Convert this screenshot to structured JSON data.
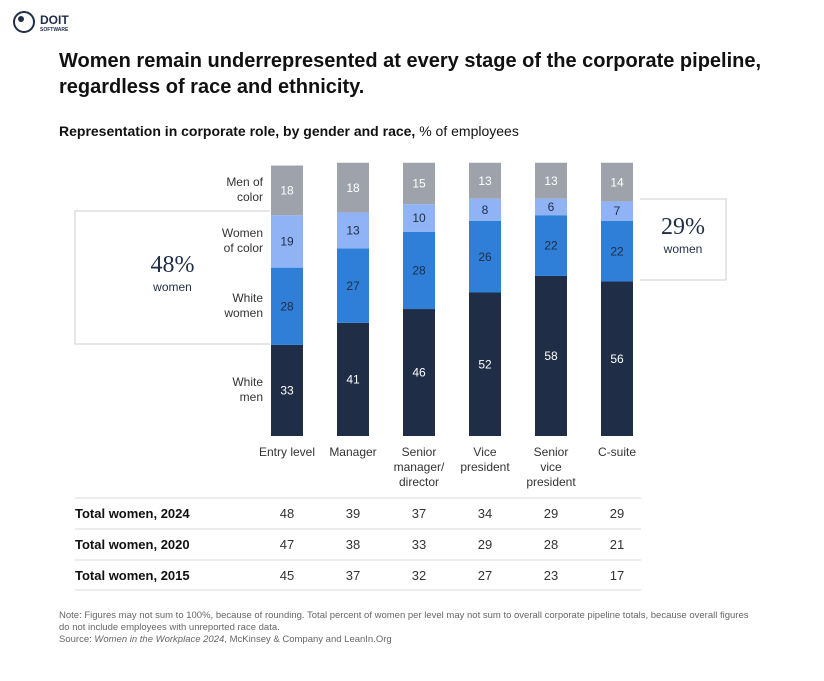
{
  "logo": {
    "name": "DOIT",
    "sub": "SOFTWARE"
  },
  "chart_data": {
    "type": "stacked_bar",
    "title": "Women remain underrepresented at every stage of the corporate pipeline, regardless of race and ethnicity.",
    "subtitle": "Representation in corporate role, by gender and race,",
    "subtitle_unit": "% of employees",
    "categories": [
      "Entry level",
      "Manager",
      "Senior\nmanager/\ndirector",
      "Vice\npresident",
      "Senior\nvice\npresident",
      "C-suite"
    ],
    "series": [
      {
        "name": "White\nmen",
        "color": "#1f2e46",
        "label_color": "#ffffff",
        "values": [
          33,
          41,
          46,
          52,
          58,
          56
        ]
      },
      {
        "name": "White\nwomen",
        "color": "#2f7ed8",
        "label_color": "#1f2e46",
        "values": [
          28,
          27,
          28,
          26,
          22,
          22
        ]
      },
      {
        "name": "Women\nof color",
        "color": "#8fb3f5",
        "label_color": "#1f2e46",
        "values": [
          19,
          13,
          10,
          8,
          6,
          7
        ]
      },
      {
        "name": "Men of\ncolor",
        "color": "#9ea3ab",
        "label_color": "#ffffff",
        "values": [
          18,
          18,
          15,
          13,
          13,
          14
        ]
      }
    ],
    "ylim": [
      0,
      100
    ],
    "annotations": [
      {
        "value": "48%",
        "label": "women"
      },
      {
        "value": "29%",
        "label": "women"
      }
    ]
  },
  "table": {
    "rows": [
      {
        "label": "Total women, 2024",
        "values": [
          "48",
          "39",
          "37",
          "34",
          "29",
          "29"
        ]
      },
      {
        "label": "Total women, 2020",
        "values": [
          "47",
          "38",
          "33",
          "29",
          "28",
          "21"
        ]
      },
      {
        "label": "Total women, 2015",
        "values": [
          "45",
          "37",
          "32",
          "27",
          "23",
          "17"
        ]
      }
    ]
  },
  "footer": {
    "note": "Note: Figures may not sum to 100%, because of rounding. Total percent of women per level may not sum to overall corporate pipeline totals, because overall figures do not include employees with unreported race data.",
    "source_label": "Source:",
    "source_title": "Women in the Workplace 2024",
    "source_rest": ", McKinsey & Company and LeanIn.Org"
  }
}
